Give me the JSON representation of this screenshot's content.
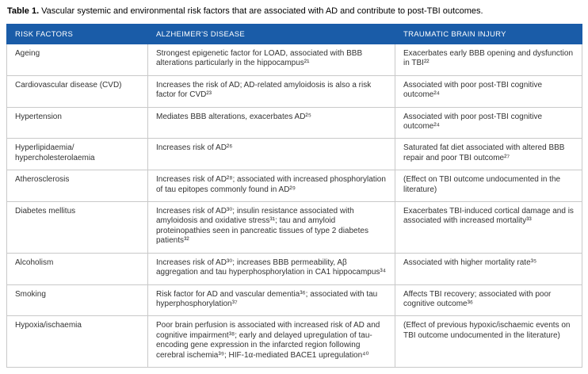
{
  "caption": {
    "label": "Table 1.",
    "text": "Vascular systemic and environmental risk factors that are associated with AD and contribute to post-TBI outcomes."
  },
  "table": {
    "headers": [
      "RISK FACTORS",
      "ALZHEIMER'S DISEASE",
      "TRAUMATIC BRAIN INJURY"
    ],
    "rows": [
      {
        "risk_factor": "Ageing",
        "alzheimers_disease": "Strongest epigenetic factor for LOAD, associated with BBB alterations particularly in the hippocampus²¹",
        "traumatic_brain_injury": "Exacerbates early BBB opening and dysfunction in TBI²²"
      },
      {
        "risk_factor": "Cardiovascular disease (CVD)",
        "alzheimers_disease": "Increases the risk of AD; AD-related amyloidosis is also a risk factor for CVD²³",
        "traumatic_brain_injury": "Associated with poor post-TBI cognitive outcome²⁴"
      },
      {
        "risk_factor": "Hypertension",
        "alzheimers_disease": "Mediates BBB alterations, exacerbates AD²⁵",
        "traumatic_brain_injury": "Associated with poor post-TBI cognitive outcome²⁴"
      },
      {
        "risk_factor": "Hyperlipidaemia/\nhypercholesterolaemia",
        "alzheimers_disease": "Increases risk of AD²⁶",
        "traumatic_brain_injury": "Saturated fat diet associated with altered BBB repair and poor TBI outcome²⁷"
      },
      {
        "risk_factor": "Atherosclerosis",
        "alzheimers_disease": "Increases risk of AD²⁸; associated with increased phosphorylation of tau epitopes commonly found in AD²⁹",
        "traumatic_brain_injury": "(Effect on TBI outcome undocumented in the literature)"
      },
      {
        "risk_factor": "Diabetes mellitus",
        "alzheimers_disease": "Increases risk of AD³⁰; insulin resistance associated with amyloidosis and oxidative stress³¹; tau and amyloid proteinopathies seen in pancreatic tissues of type 2 diabetes patients³²",
        "traumatic_brain_injury": "Exacerbates TBI-induced cortical damage and is associated with increased mortality³³"
      },
      {
        "risk_factor": "Alcoholism",
        "alzheimers_disease": "Increases risk of AD³⁰; increases BBB permeability, Aβ aggregation and tau hyperphosphorylation in CA1 hippocampus³⁴",
        "traumatic_brain_injury": "Associated with higher mortality rate³⁵"
      },
      {
        "risk_factor": "Smoking",
        "alzheimers_disease": "Risk factor for AD and vascular dementia³⁶; associated with tau hyperphosphorylation³⁷",
        "traumatic_brain_injury": "Affects TBI recovery; associated with poor cognitive outcome³⁶"
      },
      {
        "risk_factor": "Hypoxia/ischaemia",
        "alzheimers_disease": "Poor brain perfusion is associated with increased risk of AD and cognitive impairment³⁸; early and delayed upregulation of tau-encoding gene expression in the infarcted region following cerebral ischemia³⁹; HIF-1α-mediated BACE1 upregulation⁴⁰",
        "traumatic_brain_injury": "(Effect of previous hypoxic/ischaemic events on TBI outcome undocumented in the literature)"
      }
    ]
  },
  "colors": {
    "header_background": "#1A5CA8",
    "header_text": "#ffffff",
    "body_text": "#333333",
    "border": "#c9c9c9"
  }
}
